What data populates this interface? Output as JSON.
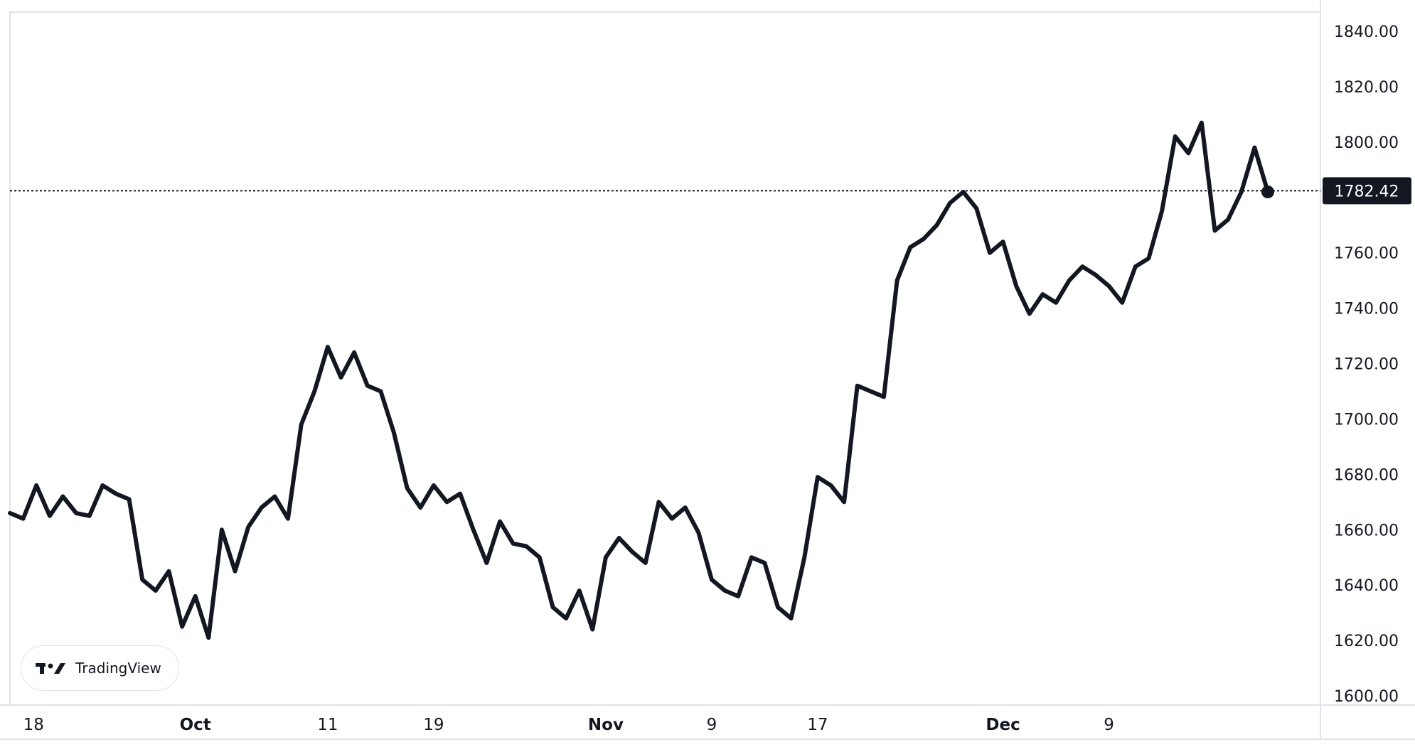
{
  "chart_data": {
    "type": "line",
    "title": "",
    "xlabel": "",
    "ylabel": "",
    "ylim": [
      1600,
      1840
    ],
    "y_ticks": [
      "1600.00",
      "1620.00",
      "1640.00",
      "1660.00",
      "1680.00",
      "1700.00",
      "1720.00",
      "1740.00",
      "1760.00",
      "1780.00",
      "1800.00",
      "1820.00",
      "1840.00"
    ],
    "x_ticks": [
      {
        "label": "18",
        "date": "2023-09-18",
        "major": false
      },
      {
        "label": "Oct",
        "date": "2023-10-01",
        "major": true
      },
      {
        "label": "11",
        "date": "2023-10-11",
        "major": false
      },
      {
        "label": "19",
        "date": "2023-10-19",
        "major": false
      },
      {
        "label": "Nov",
        "date": "2023-11-01",
        "major": true
      },
      {
        "label": "9",
        "date": "2023-11-09",
        "major": false
      },
      {
        "label": "17",
        "date": "2023-11-17",
        "major": false
      },
      {
        "label": "Dec",
        "date": "2023-12-01",
        "major": true
      },
      {
        "label": "9",
        "date": "2023-12-09",
        "major": false
      }
    ],
    "x_range": [
      "2023-09-17",
      "2023-12-21"
    ],
    "last_price": "1782.42",
    "series_color": "#131722",
    "series": [
      {
        "name": "",
        "points": [
          [
            "2023-09-17",
            1666
          ],
          [
            "2023-09-18",
            1664
          ],
          [
            "2023-09-19",
            1676
          ],
          [
            "2023-09-20",
            1665
          ],
          [
            "2023-09-21",
            1672
          ],
          [
            "2023-09-22",
            1666
          ],
          [
            "2023-09-23",
            1665
          ],
          [
            "2023-09-24",
            1676
          ],
          [
            "2023-09-25",
            1673
          ],
          [
            "2023-09-26",
            1671
          ],
          [
            "2023-09-27",
            1642
          ],
          [
            "2023-09-28",
            1638
          ],
          [
            "2023-09-29",
            1645
          ],
          [
            "2023-09-30",
            1625
          ],
          [
            "2023-10-01",
            1636
          ],
          [
            "2023-10-02",
            1621
          ],
          [
            "2023-10-03",
            1660
          ],
          [
            "2023-10-04",
            1645
          ],
          [
            "2023-10-05",
            1661
          ],
          [
            "2023-10-06",
            1668
          ],
          [
            "2023-10-07",
            1672
          ],
          [
            "2023-10-08",
            1664
          ],
          [
            "2023-10-09",
            1698
          ],
          [
            "2023-10-10",
            1710
          ],
          [
            "2023-10-11",
            1726
          ],
          [
            "2023-10-12",
            1715
          ],
          [
            "2023-10-13",
            1724
          ],
          [
            "2023-10-14",
            1712
          ],
          [
            "2023-10-15",
            1710
          ],
          [
            "2023-10-16",
            1695
          ],
          [
            "2023-10-17",
            1675
          ],
          [
            "2023-10-18",
            1668
          ],
          [
            "2023-10-19",
            1676
          ],
          [
            "2023-10-20",
            1670
          ],
          [
            "2023-10-21",
            1673
          ],
          [
            "2023-10-22",
            1660
          ],
          [
            "2023-10-23",
            1648
          ],
          [
            "2023-10-24",
            1663
          ],
          [
            "2023-10-25",
            1655
          ],
          [
            "2023-10-26",
            1654
          ],
          [
            "2023-10-27",
            1650
          ],
          [
            "2023-10-28",
            1632
          ],
          [
            "2023-10-29",
            1628
          ],
          [
            "2023-10-30",
            1638
          ],
          [
            "2023-10-31",
            1624
          ],
          [
            "2023-11-01",
            1650
          ],
          [
            "2023-11-02",
            1657
          ],
          [
            "2023-11-03",
            1652
          ],
          [
            "2023-11-04",
            1648
          ],
          [
            "2023-11-05",
            1670
          ],
          [
            "2023-11-06",
            1664
          ],
          [
            "2023-11-07",
            1668
          ],
          [
            "2023-11-08",
            1659
          ],
          [
            "2023-11-09",
            1642
          ],
          [
            "2023-11-10",
            1638
          ],
          [
            "2023-11-11",
            1636
          ],
          [
            "2023-11-12",
            1650
          ],
          [
            "2023-11-13",
            1648
          ],
          [
            "2023-11-14",
            1632
          ],
          [
            "2023-11-15",
            1628
          ],
          [
            "2023-11-16",
            1650
          ],
          [
            "2023-11-17",
            1679
          ],
          [
            "2023-11-18",
            1676
          ],
          [
            "2023-11-19",
            1670
          ],
          [
            "2023-11-20",
            1712
          ],
          [
            "2023-11-21",
            1710
          ],
          [
            "2023-11-22",
            1708
          ],
          [
            "2023-11-23",
            1750
          ],
          [
            "2023-11-24",
            1762
          ],
          [
            "2023-11-25",
            1765
          ],
          [
            "2023-11-26",
            1770
          ],
          [
            "2023-11-27",
            1778
          ],
          [
            "2023-11-28",
            1782
          ],
          [
            "2023-11-29",
            1776
          ],
          [
            "2023-11-30",
            1760
          ],
          [
            "2023-12-01",
            1764
          ],
          [
            "2023-12-02",
            1748
          ],
          [
            "2023-12-03",
            1738
          ],
          [
            "2023-12-04",
            1745
          ],
          [
            "2023-12-05",
            1742
          ],
          [
            "2023-12-06",
            1750
          ],
          [
            "2023-12-07",
            1755
          ],
          [
            "2023-12-08",
            1752
          ],
          [
            "2023-12-09",
            1748
          ],
          [
            "2023-12-10",
            1742
          ],
          [
            "2023-12-11",
            1755
          ],
          [
            "2023-12-12",
            1758
          ],
          [
            "2023-12-13",
            1775
          ],
          [
            "2023-12-14",
            1802
          ],
          [
            "2023-12-15",
            1796
          ],
          [
            "2023-12-16",
            1807
          ],
          [
            "2023-12-17",
            1768
          ],
          [
            "2023-12-18",
            1772
          ],
          [
            "2023-12-19",
            1782
          ],
          [
            "2023-12-20",
            1798
          ],
          [
            "2023-12-21",
            1782
          ]
        ]
      }
    ]
  },
  "branding": {
    "logo_icon": "tradingview-logo-icon",
    "logo_text": "TradingView"
  }
}
